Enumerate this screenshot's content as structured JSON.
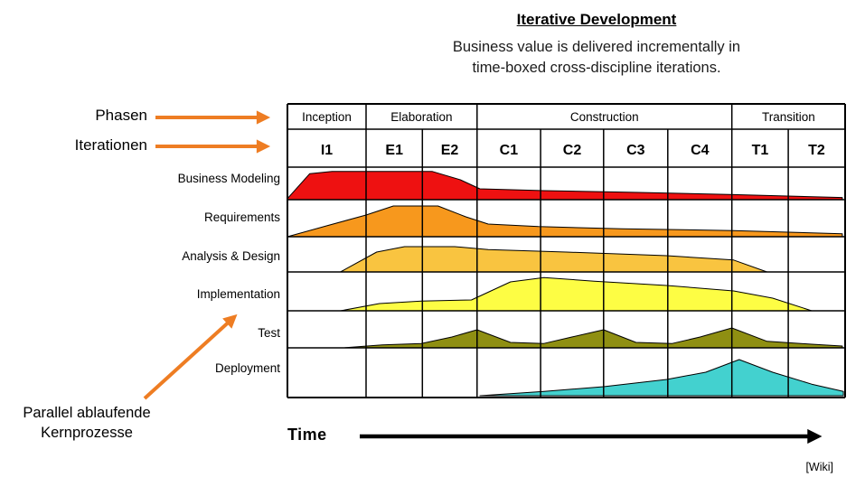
{
  "title": "Iterative Development",
  "subtitle_lines": [
    "Business value is delivered incrementally in",
    "time-boxed cross-discipline iterations."
  ],
  "annotations": {
    "phases_label": "Phasen",
    "iterations_label": "Iterationen",
    "core_processes_lines": [
      "Parallel ablaufende",
      "Kernprozesse"
    ],
    "arrow_color": "#ee7d23"
  },
  "time_label": "Time",
  "attribution": "[Wiki]",
  "chart_data": {
    "type": "area",
    "description": "RUP-style hump chart: relative effort of each core discipline across time-boxed iterations; x is fraction of the timeline, y is relative effort 0-1.",
    "grid_color": "#000000",
    "column_bounds": [
      0,
      0.141,
      0.242,
      0.34,
      0.454,
      0.567,
      0.682,
      0.797,
      0.898,
      1
    ],
    "phases": [
      {
        "name": "Inception",
        "iterations": [
          "I1"
        ]
      },
      {
        "name": "Elaboration",
        "iterations": [
          "E1",
          "E2"
        ]
      },
      {
        "name": "Construction",
        "iterations": [
          "C1",
          "C2",
          "C3",
          "C4"
        ]
      },
      {
        "name": "Transition",
        "iterations": [
          "T1",
          "T2"
        ]
      }
    ],
    "disciplines": [
      {
        "name": "Business Modeling",
        "color": "#ee1111",
        "profile": [
          [
            0,
            0.03
          ],
          [
            0.04,
            0.72
          ],
          [
            0.08,
            0.78
          ],
          [
            0.26,
            0.78
          ],
          [
            0.31,
            0.55
          ],
          [
            0.345,
            0.3
          ],
          [
            0.46,
            0.25
          ],
          [
            0.63,
            0.2
          ],
          [
            0.8,
            0.14
          ],
          [
            0.995,
            0.06
          ]
        ]
      },
      {
        "name": "Requirements",
        "color": "#f7981d",
        "profile": [
          [
            0,
            0
          ],
          [
            0.07,
            0.3
          ],
          [
            0.141,
            0.6
          ],
          [
            0.19,
            0.85
          ],
          [
            0.27,
            0.85
          ],
          [
            0.32,
            0.55
          ],
          [
            0.36,
            0.35
          ],
          [
            0.45,
            0.28
          ],
          [
            0.6,
            0.22
          ],
          [
            0.8,
            0.17
          ],
          [
            0.995,
            0.08
          ]
        ]
      },
      {
        "name": "Analysis & Design",
        "color": "#f9c440",
        "profile": [
          [
            0.095,
            0
          ],
          [
            0.16,
            0.55
          ],
          [
            0.21,
            0.7
          ],
          [
            0.3,
            0.7
          ],
          [
            0.36,
            0.62
          ],
          [
            0.5,
            0.55
          ],
          [
            0.68,
            0.45
          ],
          [
            0.8,
            0.33
          ],
          [
            0.86,
            0
          ]
        ]
      },
      {
        "name": "Implementation",
        "color": "#fdfd44",
        "profile": [
          [
            0.095,
            0
          ],
          [
            0.165,
            0.2
          ],
          [
            0.24,
            0.27
          ],
          [
            0.33,
            0.3
          ],
          [
            0.4,
            0.8
          ],
          [
            0.46,
            0.92
          ],
          [
            0.55,
            0.82
          ],
          [
            0.68,
            0.7
          ],
          [
            0.8,
            0.55
          ],
          [
            0.87,
            0.35
          ],
          [
            0.94,
            0
          ]
        ]
      },
      {
        "name": "Test",
        "color": "#8f8f12",
        "profile": [
          [
            0.1,
            0
          ],
          [
            0.17,
            0.08
          ],
          [
            0.24,
            0.12
          ],
          [
            0.295,
            0.3
          ],
          [
            0.34,
            0.5
          ],
          [
            0.4,
            0.15
          ],
          [
            0.46,
            0.12
          ],
          [
            0.51,
            0.3
          ],
          [
            0.567,
            0.5
          ],
          [
            0.625,
            0.15
          ],
          [
            0.69,
            0.12
          ],
          [
            0.74,
            0.3
          ],
          [
            0.797,
            0.55
          ],
          [
            0.86,
            0.18
          ],
          [
            0.94,
            0.1
          ],
          [
            0.995,
            0.05
          ]
        ]
      },
      {
        "name": "Deployment",
        "color": "#43d1cf",
        "profile": [
          [
            0.345,
            0
          ],
          [
            0.46,
            0.12
          ],
          [
            0.567,
            0.25
          ],
          [
            0.68,
            0.45
          ],
          [
            0.75,
            0.65
          ],
          [
            0.81,
            1.0
          ],
          [
            0.87,
            0.65
          ],
          [
            0.94,
            0.32
          ],
          [
            0.997,
            0.12
          ]
        ]
      }
    ]
  }
}
